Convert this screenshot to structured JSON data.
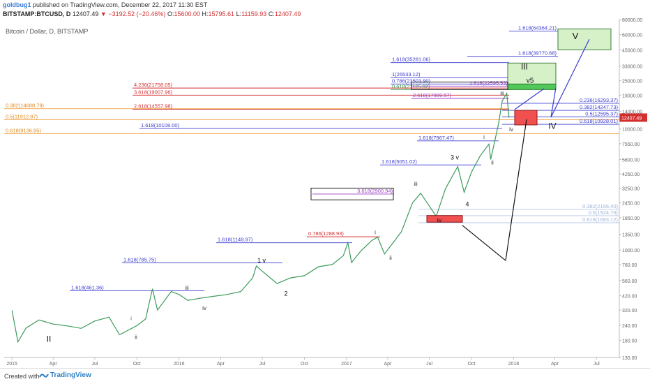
{
  "header": {
    "user": "goldbug1",
    "published": "published on TradingView.com, December 22, 2017 11:30 EST",
    "symbol": "BITSTAMP:BTCUSD, D",
    "last": "12407.49",
    "arrow": "▼",
    "change": "−3192.52 (−20.46%)",
    "o": "O:",
    "o_val": "15600.00",
    "h": "H:",
    "h_val": "15795.61",
    "l": "L:",
    "l_val": "11159.93",
    "c": "C:",
    "c_val": "12407.49"
  },
  "footer": {
    "created": "Created with",
    "brand": "TradingView"
  },
  "colors": {
    "accent_red": "#d32f2f",
    "blue_line": "#3b3bd1",
    "orange_line": "#f0a040",
    "purple_text": "#9c3cc4",
    "green_box": "#52c75a",
    "red_box": "#f05050",
    "price_tag": "#d32f2f"
  },
  "chart_data": {
    "type": "line",
    "title": "Bitcoin / Dollar, D, BITSTAMP",
    "yscale": "log",
    "ylim": [
      130,
      80000
    ],
    "x_ticks": [
      "2015",
      "Apr",
      "Jul",
      "Oct",
      "2016",
      "Apr",
      "Jul",
      "Oct",
      "2017",
      "Apr",
      "Jul",
      "Oct",
      "2018",
      "Apr",
      "Jul"
    ],
    "y_ticks": [
      "80000.00",
      "60000.00",
      "45000.00",
      "33000.00",
      "25000.00",
      "19000.00",
      "14000.00",
      "10000.00",
      "7550.00",
      "5600.00",
      "4250.00",
      "3250.00",
      "2450.00",
      "1850.00",
      "1350.00",
      "1000.00",
      "760.00",
      "560.00",
      "420.00",
      "320.00",
      "240.00",
      "180.00",
      "130.00"
    ],
    "last_price_tag": "12407.49",
    "series": [
      {
        "values": [
          [
            "2015-01-01",
            318
          ],
          [
            "2015-01-14",
            175
          ],
          [
            "2015-02-01",
            228
          ],
          [
            "2015-03-01",
            265
          ],
          [
            "2015-04-01",
            245
          ],
          [
            "2015-05-01",
            237
          ],
          [
            "2015-06-01",
            226
          ],
          [
            "2015-07-01",
            260
          ],
          [
            "2015-08-01",
            280
          ],
          [
            "2015-08-24",
            200
          ],
          [
            "2015-10-01",
            238
          ],
          [
            "2015-10-20",
            270
          ],
          [
            "2015-11-04",
            480
          ],
          [
            "2015-11-15",
            320
          ],
          [
            "2015-12-15",
            455
          ],
          [
            "2016-01-01",
            430
          ],
          [
            "2016-01-20",
            385
          ],
          [
            "2016-02-15",
            400
          ],
          [
            "2016-03-15",
            415
          ],
          [
            "2016-04-15",
            430
          ],
          [
            "2016-05-15",
            455
          ],
          [
            "2016-06-10",
            590
          ],
          [
            "2016-06-18",
            740
          ],
          [
            "2016-07-01",
            670
          ],
          [
            "2016-08-02",
            530
          ],
          [
            "2016-09-01",
            590
          ],
          [
            "2016-10-01",
            615
          ],
          [
            "2016-11-01",
            730
          ],
          [
            "2016-12-01",
            760
          ],
          [
            "2016-12-25",
            900
          ],
          [
            "2017-01-04",
            1150
          ],
          [
            "2017-01-12",
            790
          ],
          [
            "2017-02-01",
            980
          ],
          [
            "2017-02-25",
            1200
          ],
          [
            "2017-03-10",
            1280
          ],
          [
            "2017-03-25",
            930
          ],
          [
            "2017-04-15",
            1180
          ],
          [
            "2017-05-01",
            1420
          ],
          [
            "2017-05-25",
            2450
          ],
          [
            "2017-06-12",
            2950
          ],
          [
            "2017-07-16",
            1900
          ],
          [
            "2017-08-05",
            3200
          ],
          [
            "2017-09-01",
            4900
          ],
          [
            "2017-09-15",
            3000
          ],
          [
            "2017-10-01",
            4400
          ],
          [
            "2017-10-20",
            6000
          ],
          [
            "2017-11-08",
            7500
          ],
          [
            "2017-11-12",
            5600
          ],
          [
            "2017-11-29",
            11000
          ],
          [
            "2017-12-07",
            17000
          ],
          [
            "2017-12-17",
            19666
          ],
          [
            "2017-12-22",
            12407
          ]
        ]
      }
    ],
    "fib_levels": [
      {
        "label": "1.618(64364.21)",
        "value": 64364.21,
        "color": "#3b3bd1",
        "text_color": "#3b3bd1"
      },
      {
        "label": "1.618(39770.68)",
        "value": 39770.68,
        "color": "#3b3bd1",
        "text_color": "#3b3bd1"
      },
      {
        "label": "1.618(35281.06)",
        "value": 35281.06,
        "color": "#3b3bd1",
        "text_color": "#3b3bd1"
      },
      {
        "label": "1(26533.12)",
        "value": 26533.12,
        "color": "#3b3bd1",
        "text_color": "#3b3bd1"
      },
      {
        "label": "0.786(23503.90)",
        "value": 23503.9,
        "color": "#3b3bd1",
        "text_color": "#3b3bd1"
      },
      {
        "label": "0.618(21125.62)",
        "value": 21125.62,
        "color": "#2a9d4a",
        "text_color": "#2a9d4a"
      },
      {
        "label": "1.618(22595.53)",
        "value": 22595.53,
        "color": "#9c3cc4",
        "text_color": "#9c3cc4"
      },
      {
        "label": "4.236(21758.05)",
        "value": 21758.05,
        "color": "#d32f2f",
        "text_color": "#d32f2f"
      },
      {
        "label": "3.618(19007.96)",
        "value": 19007.96,
        "color": "#d32f2f",
        "text_color": "#d32f2f"
      },
      {
        "label": "2.618(17889.57)",
        "value": 17889.57,
        "color": "#9c3cc4",
        "text_color": "#9c3cc4"
      },
      {
        "label": "0.382(14688.79)",
        "value": 14688.79,
        "color": "#f0a040",
        "text_color": "#e08a20"
      },
      {
        "label": "2.618(14557.98)",
        "value": 14557.98,
        "color": "#d32f2f",
        "text_color": "#d32f2f"
      },
      {
        "label": "0.5(11912.87)",
        "value": 11912.87,
        "color": "#f0a040",
        "text_color": "#e08a20"
      },
      {
        "label": "0.618(9136.95)",
        "value": 9136.95,
        "color": "#f0a040",
        "text_color": "#e08a20"
      },
      {
        "label": "1.618(10108.00)",
        "value": 10108.0,
        "color": "#3b3bd1",
        "text_color": "#3b3bd1"
      },
      {
        "label": "0.236(16293.37)",
        "value": 16293.37,
        "color": "#3b3bd1",
        "text_color": "#3b3bd1"
      },
      {
        "label": "0.382(14247.73)",
        "value": 14247.73,
        "color": "#3b3bd1",
        "text_color": "#3b3bd1"
      },
      {
        "label": "0.5(12595.37)",
        "value": 12595.37,
        "color": "#3b3bd1",
        "text_color": "#3b3bd1"
      },
      {
        "label": "0.618(10928.01)",
        "value": 10928.01,
        "color": "#3b3bd1",
        "text_color": "#3b3bd1"
      },
      {
        "label": "1.618(7967.47)",
        "value": 7967.47,
        "color": "#3b3bd1",
        "text_color": "#3b3bd1"
      },
      {
        "label": "1.618(5051.02)",
        "value": 5051.02,
        "color": "#3b3bd1",
        "text_color": "#3b3bd1"
      },
      {
        "label": "3.618(2900.94)",
        "value": 2900.94,
        "color": "#9c3cc4",
        "text_color": "#9c3cc4"
      },
      {
        "label": "0.382(2166.40)",
        "value": 2166.4,
        "color": "#b8c8e8",
        "text_color": "#a0b4d8"
      },
      {
        "label": "0.5(1924.76)",
        "value": 1924.76,
        "color": "#b8c8e8",
        "text_color": "#a0b4d8"
      },
      {
        "label": "0.618(1683.12)",
        "value": 1683.12,
        "color": "#b8c8e8",
        "text_color": "#a0b4d8"
      },
      {
        "label": "0.786(1288.93)",
        "value": 1288.93,
        "color": "#d32f2f",
        "text_color": "#d32f2f"
      },
      {
        "label": "1.618(1149.97)",
        "value": 1149.97,
        "color": "#3b3bd1",
        "text_color": "#3b3bd1"
      },
      {
        "label": "1.618(785.75)",
        "value": 785.75,
        "color": "#3b3bd1",
        "text_color": "#3b3bd1"
      },
      {
        "label": "1.618(461.36)",
        "value": 461.36,
        "color": "#3b3bd1",
        "text_color": "#3b3bd1"
      }
    ],
    "wave_labels": [
      "II",
      "ii",
      "iii",
      "iv",
      "i",
      "1 v",
      "2",
      "i",
      "ii",
      "iii",
      "iv",
      "3 v",
      "4",
      "i",
      "ii",
      "iii",
      "iv",
      "III",
      "v5",
      "IV",
      "V"
    ]
  }
}
